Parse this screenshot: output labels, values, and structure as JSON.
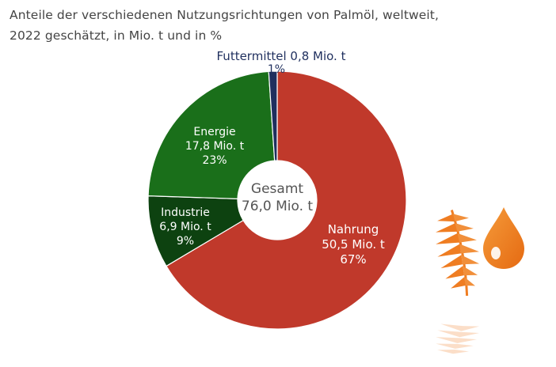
{
  "title": {
    "line1": "Anteile der verschiedenen Nutzungsrichtungen von Palmöl, weltweit,",
    "line2": "2022 geschätzt, in Mio. t und in %"
  },
  "center_label": {
    "line1": "Gesamt",
    "line2": "76,0 Mio. t"
  },
  "chart_data": {
    "type": "pie",
    "donut": true,
    "title": "Anteile der verschiedenen Nutzungsrichtungen von Palmöl, weltweit, 2022 geschätzt, in Mio. t und in %",
    "total": 76.0,
    "total_unit": "Mio. t",
    "slices": [
      {
        "name": "Nahrung",
        "value": 50.5,
        "value_label": "50,5 Mio. t",
        "percent": 67,
        "percent_label": "67%",
        "color": "#c0392b"
      },
      {
        "name": "Industrie",
        "value": 6.9,
        "value_label": "6,9 Mio. t",
        "percent": 9,
        "percent_label": "9%",
        "color": "#0d4210"
      },
      {
        "name": "Energie",
        "value": 17.8,
        "value_label": "17,8 Mio. t",
        "percent": 23,
        "percent_label": "23%",
        "color": "#1a6f1a"
      },
      {
        "name": "Futtermittel",
        "value": 0.8,
        "value_label": "0,8 Mio. t",
        "percent": 1,
        "percent_label": "1%",
        "color": "#1f2f5e"
      }
    ],
    "futtermittel_label": "Futtermittel 0,8 Mio. t"
  },
  "colors": {
    "title": "#444444",
    "accent_orange": "#ef7d22",
    "label_light": "#ffffff",
    "label_dark_blue": "#1f2f5e",
    "center_text": "#555555"
  },
  "icons": [
    "palm-leaf-icon",
    "oil-drop-icon"
  ]
}
